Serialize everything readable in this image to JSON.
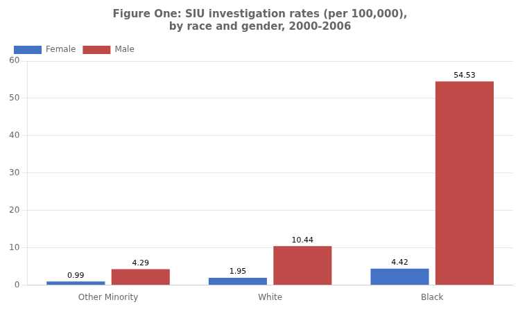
{
  "chart_data": {
    "type": "bar",
    "title": "Figure One: SIU investigation rates (per 100,000),\nby race and gender, 2000-2006",
    "categories": [
      "Other Minority",
      "White",
      "Black"
    ],
    "series": [
      {
        "name": "Female",
        "color": "#4472C4",
        "values": [
          0.99,
          1.95,
          4.42
        ]
      },
      {
        "name": "Male",
        "color": "#BE4B48",
        "values": [
          4.29,
          10.44,
          54.53
        ]
      }
    ],
    "ylim": [
      0,
      60
    ],
    "yticks": [
      0,
      10,
      20,
      30,
      40,
      50,
      60
    ],
    "grid": true,
    "legend": "upper left",
    "data_labels": true
  }
}
